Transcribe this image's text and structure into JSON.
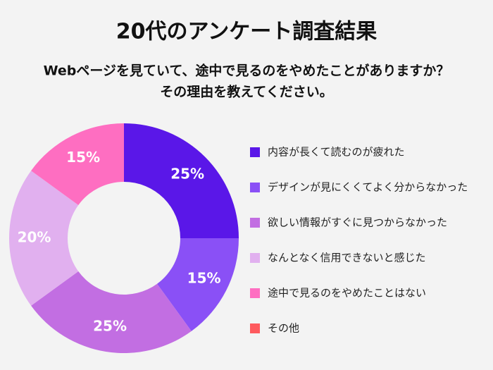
{
  "chart_data": {
    "type": "donut",
    "title": "20代のアンケート調査結果",
    "subtitle": [
      "Webページを見ていて、途中で見るのをやめたことがありますか？",
      "その理由を教えてください。"
    ],
    "categories": [
      "内容が長くて読むのが疲れた",
      "デザインが見にくくてよく分からなかった",
      "欲しい情報がすぐに見つからなかった",
      "なんとなく信用できないと感じた",
      "途中で見るのをやめたことはない",
      "その他"
    ],
    "values": [
      25,
      15,
      25,
      20,
      15,
      0
    ],
    "value_labels": [
      "25%",
      "15%",
      "25%",
      "20%",
      "15%",
      null
    ],
    "colors": [
      "#5a17e8",
      "#8a50f6",
      "#c26ee2",
      "#e1b0ef",
      "#fe6ec1",
      "#fe5a5e"
    ],
    "legend": "right"
  }
}
